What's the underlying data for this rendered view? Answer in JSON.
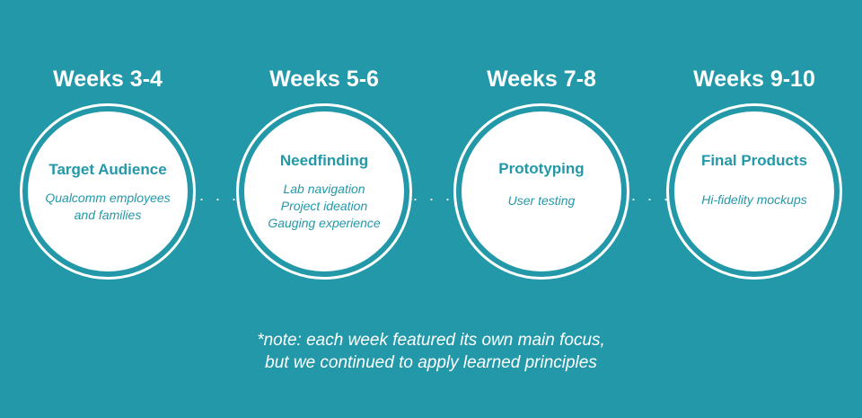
{
  "phases": [
    {
      "week": "Weeks 3-4",
      "title": "Target Audience",
      "items": [
        "Qualcomm employees",
        "and families"
      ]
    },
    {
      "week": "Weeks 5-6",
      "title": "Needfinding",
      "items": [
        "Lab navigation",
        "Project ideation",
        "Gauging experience"
      ]
    },
    {
      "week": "Weeks 7-8",
      "title": "Prototyping",
      "items": [
        "User testing"
      ]
    },
    {
      "week": "Weeks 9-10",
      "title": "Final Products",
      "items": [
        "Hi-fidelity mockups"
      ]
    }
  ],
  "connector": ". . .",
  "note": {
    "line1": "*note: each week featured its own main focus,",
    "line2": "but we continued to apply learned principles"
  },
  "colors": {
    "background": "#2398a8",
    "circle": "#ffffff",
    "accent_text": "#2398a8"
  }
}
